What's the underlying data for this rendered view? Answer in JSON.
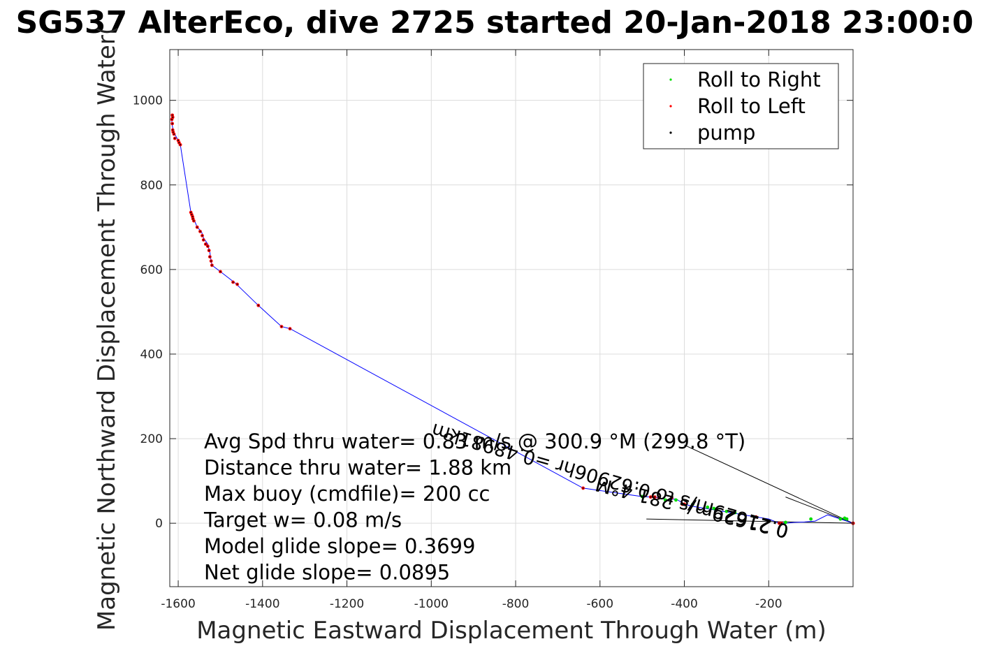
{
  "chart_data": {
    "type": "line",
    "title": "SG537 AlterEco, dive 2725 started 20-Jan-2018 23:00:0",
    "xlabel": "Magnetic Eastward Displacement Through Water (m)",
    "ylabel": "Magnetic Northward Displacement Through Water(",
    "xlim": [
      -1620,
      0
    ],
    "ylim": [
      -150,
      1120
    ],
    "xticks": [
      -1600,
      -1400,
      -1200,
      -1000,
      -800,
      -600,
      -400,
      -200
    ],
    "yticks": [
      0,
      200,
      400,
      600,
      800,
      1000
    ],
    "grid": true,
    "legend_position": "top-right",
    "legend": [
      {
        "label": "Roll to Right",
        "color": "#00dd00"
      },
      {
        "label": "Roll to Left",
        "color": "#ff0000"
      },
      {
        "label": "pump",
        "color": "#000000"
      }
    ],
    "colors": {
      "track": "#0000ff",
      "left": "#ff0000",
      "right": "#00dd00",
      "pump": "#000000",
      "waypoint": "#cc0000"
    },
    "track": {
      "x": [
        0,
        -15,
        -30,
        -60,
        -90,
        -115,
        -140,
        -160,
        -180,
        -200,
        -230,
        -260,
        -290,
        -320,
        -350,
        -380,
        -400,
        -420,
        -440,
        -460,
        -480,
        -500,
        -640,
        -1335,
        -1355,
        -1410,
        -1465,
        -1500,
        -1520,
        -1522,
        -1525,
        -1530,
        -1540,
        -1545,
        -1555,
        -1563,
        -1566,
        -1570,
        -1595,
        -1598,
        -1600,
        -1608,
        -1612,
        -1615,
        -1615,
        -1612
      ],
      "y": [
        0,
        5,
        10,
        20,
        5,
        3,
        2,
        0,
        2,
        10,
        15,
        20,
        25,
        30,
        35,
        40,
        45,
        58,
        55,
        60,
        62,
        63,
        83,
        460,
        465,
        515,
        568,
        595,
        610,
        620,
        640,
        660,
        675,
        690,
        700,
        720,
        725,
        735,
        895,
        900,
        905,
        920,
        930,
        945,
        960,
        965
      ]
    },
    "roll_right_points": {
      "x": [
        -15,
        -20,
        -30,
        -100,
        -160,
        -280,
        -300,
        -330,
        -345,
        -380,
        -420,
        -445,
        -500
      ],
      "y": [
        10,
        12,
        10,
        10,
        2,
        25,
        28,
        35,
        38,
        45,
        55,
        55,
        63
      ]
    },
    "roll_left_points": {
      "x": [
        -175,
        -170,
        -230,
        -400,
        -405,
        -430,
        -460,
        -470,
        -480,
        -640,
        -1335,
        -1355,
        -1410,
        -1460,
        -1470,
        -1500,
        -1520,
        -1522,
        -1525,
        -1527,
        -1530,
        -1535,
        -1540,
        -1543,
        -1548,
        -1555,
        -1563,
        -1565,
        -1566,
        -1568,
        -1570,
        -1595,
        -1598,
        -1600,
        -1608,
        -1610,
        -1612,
        -1613,
        -1614,
        -1615,
        -1614,
        -1613
      ],
      "y": [
        0,
        0,
        15,
        45,
        45,
        60,
        60,
        62,
        62,
        83,
        460,
        465,
        515,
        565,
        570,
        595,
        610,
        620,
        630,
        645,
        655,
        660,
        670,
        680,
        690,
        700,
        715,
        720,
        725,
        730,
        735,
        895,
        900,
        905,
        910,
        920,
        925,
        930,
        945,
        955,
        965,
        960
      ]
    },
    "current_vectors": [
      {
        "x": [
          0,
          -490
        ],
        "y": [
          0,
          10
        ]
      },
      {
        "x": [
          0,
          -400
        ],
        "y": [
          0,
          185
        ]
      },
      {
        "x": [
          0,
          -160
        ],
        "y": [
          0,
          62
        ]
      }
    ],
    "rotated_annotations": [
      {
        "text": "0.21629m/s 281.4°M",
        "x": -150,
        "y": -5,
        "angle_deg": 194
      },
      {
        "text": "0.21629m/s to 0.62906hr =0.48981km",
        "x": -150,
        "y": -5,
        "angle_deg": 196
      }
    ],
    "stats": [
      "Avg Spd thru water= 0.83 m/s @ 300.9 °M (299.8 °T)",
      "Distance thru water=  1.88 km",
      "Max buoy (cmdfile)= 200 cc",
      "Target w= 0.08 m/s",
      "Model glide slope= 0.3699",
      "Net glide slope= 0.0895"
    ]
  }
}
